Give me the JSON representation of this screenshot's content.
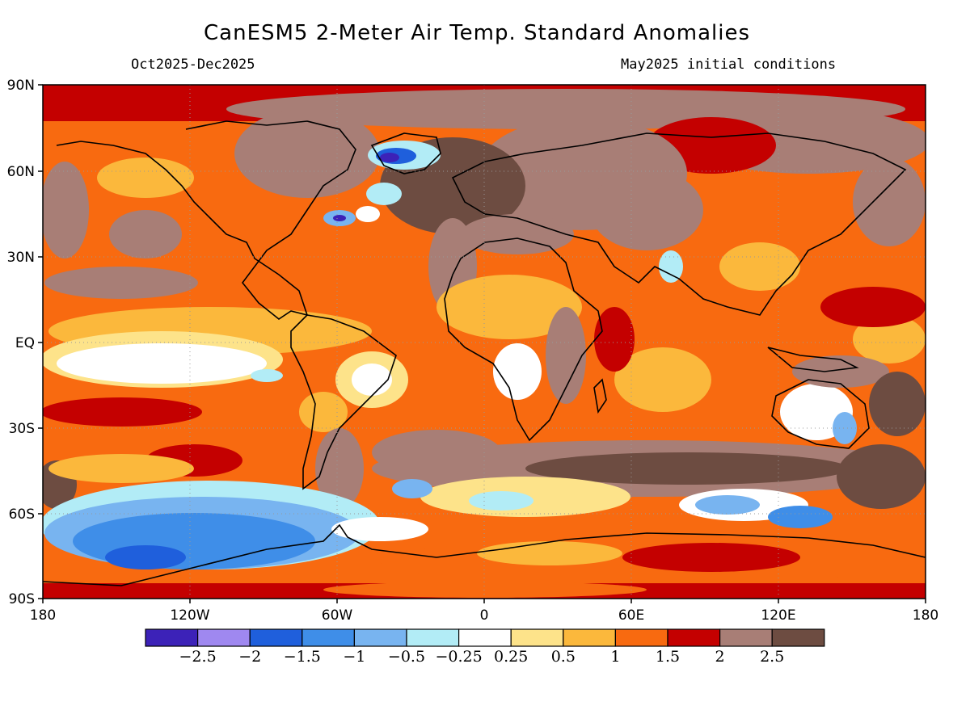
{
  "title": "CanESM5 2-Meter Air Temp. Standard Anomalies",
  "period": "Oct2025-Dec2025",
  "initial_conditions": "May2025 initial conditions",
  "map": {
    "lat_ticks": [
      "90N",
      "60N",
      "30N",
      "EQ",
      "30S",
      "60S",
      "90S"
    ],
    "lon_ticks": [
      "180",
      "120W",
      "60W",
      "0",
      "60E",
      "120E",
      "180"
    ],
    "dominant_fill": "warm anomalies (orange/red) over most oceans and continents; cold anomalies (blue) over the Southern Ocean near Antarctica and off Greenland/Newfoundland"
  },
  "colorbar": {
    "colors": [
      "#3c22b8",
      "#9f88f0",
      "#1f5fdc",
      "#3f8ee8",
      "#78b4f0",
      "#b2ecf6",
      "#ffffff",
      "#fde38a",
      "#fbb83c",
      "#f86a10",
      "#c40000",
      "#a87e76",
      "#6d4c41"
    ],
    "labels": [
      "-2.5",
      "-2",
      "-1.5",
      "-1",
      "-0.5",
      "-0.25",
      "0.25",
      "0.5",
      "1",
      "1.5",
      "2",
      "2.5"
    ]
  }
}
